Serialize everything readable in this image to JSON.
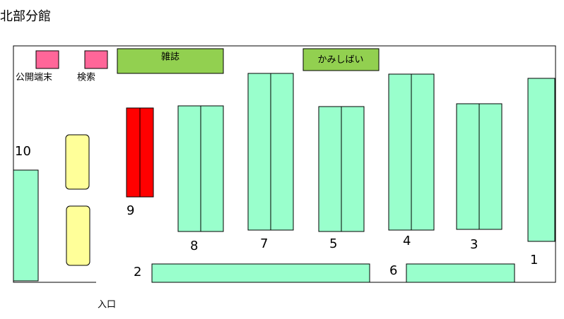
{
  "title": "北部分館",
  "terminals": [
    "公開端末",
    "検索"
  ],
  "areas": [
    "雑誌",
    "かみしばい"
  ],
  "shelves": [
    1,
    2,
    3,
    4,
    5,
    6,
    7,
    8,
    9,
    10
  ],
  "entrance": "入口"
}
